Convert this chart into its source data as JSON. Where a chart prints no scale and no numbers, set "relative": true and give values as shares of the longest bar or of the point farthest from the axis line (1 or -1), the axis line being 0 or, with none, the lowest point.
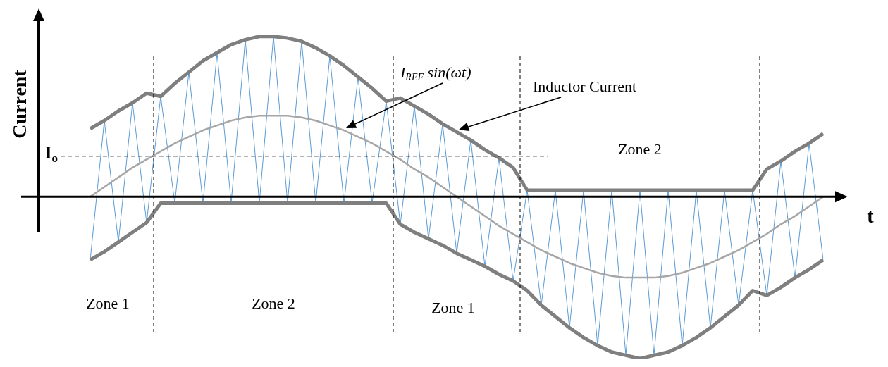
{
  "chart_data": {
    "type": "line",
    "relative": true,
    "ylabel": "Current",
    "xlabel": "t",
    "categories": [
      null,
      null,
      null,
      null,
      null,
      null,
      null,
      null,
      null,
      null,
      null,
      null,
      null,
      null,
      null,
      null,
      null,
      null,
      null,
      null,
      null,
      null,
      null,
      null,
      null,
      null,
      null,
      null,
      null,
      null,
      null,
      null,
      null,
      null,
      null,
      null,
      null,
      null,
      null,
      null,
      null,
      null,
      null,
      null,
      null,
      null,
      null,
      null,
      null,
      null,
      null,
      null,
      null
    ],
    "series": [
      {
        "color": "#5b9bd5",
        "values": [
          -0.39,
          0.47,
          -0.28,
          0.58,
          -0.16,
          0.62,
          -0.04,
          0.77,
          -0.04,
          0.89,
          -0.04,
          0.97,
          -0.04,
          0.99,
          -0.04,
          0.96,
          -0.04,
          0.87,
          -0.04,
          0.74,
          -0.04,
          0.59,
          -0.17,
          0.56,
          -0.26,
          0.45,
          -0.35,
          0.35,
          -0.43,
          0.24,
          -0.52,
          0.04,
          -0.67,
          0.04,
          -0.81,
          0.04,
          -0.92,
          0.04,
          -0.98,
          0.04,
          -0.98,
          0.04,
          -0.92,
          0.04,
          -0.81,
          0.04,
          -0.67,
          0.04,
          -0.61,
          0.22,
          -0.5,
          0.33,
          -0.39
        ]
      },
      {
        "color": "#7f7f7f",
        "values": [
          0.42,
          0.47,
          0.53,
          0.58,
          0.64,
          0.62,
          0.7,
          0.77,
          0.84,
          0.89,
          0.94,
          0.97,
          0.99,
          0.99,
          0.98,
          0.96,
          0.92,
          0.87,
          0.81,
          0.74,
          0.67,
          0.59,
          0.61,
          0.56,
          0.51,
          0.45,
          0.4,
          0.35,
          0.29,
          0.24,
          0.18,
          0.04,
          0.04,
          0.04,
          0.04,
          0.04,
          0.04,
          0.04,
          0.04,
          0.04,
          0.04,
          0.04,
          0.04,
          0.04,
          0.04,
          0.04,
          0.04,
          0.04,
          0.17,
          0.22,
          0.28,
          0.33,
          0.39
        ]
      },
      {
        "color": "#7f7f7f",
        "values": [
          -0.39,
          -0.34,
          -0.28,
          -0.22,
          -0.16,
          -0.04,
          -0.04,
          -0.04,
          -0.04,
          -0.04,
          -0.04,
          -0.04,
          -0.04,
          -0.04,
          -0.04,
          -0.04,
          -0.04,
          -0.04,
          -0.04,
          -0.04,
          -0.04,
          -0.04,
          -0.17,
          -0.22,
          -0.26,
          -0.3,
          -0.35,
          -0.39,
          -0.43,
          -0.48,
          -0.52,
          -0.58,
          -0.67,
          -0.74,
          -0.81,
          -0.87,
          -0.92,
          -0.96,
          -0.98,
          -1,
          -0.98,
          -0.96,
          -0.92,
          -0.87,
          -0.81,
          -0.74,
          -0.67,
          -0.58,
          -0.61,
          -0.56,
          -0.5,
          -0.45,
          -0.39
        ]
      },
      {
        "color": "#a6a6a6",
        "values": [
          0,
          0.06,
          0.12,
          0.18,
          0.23,
          0.28,
          0.33,
          0.37,
          0.41,
          0.44,
          0.47,
          0.49,
          0.5,
          0.5,
          0.5,
          0.49,
          0.47,
          0.44,
          0.41,
          0.37,
          0.33,
          0.28,
          0.23,
          0.17,
          0.12,
          0.06,
          0,
          -0.06,
          -0.12,
          -0.18,
          -0.23,
          -0.28,
          -0.33,
          -0.37,
          -0.41,
          -0.44,
          -0.47,
          -0.49,
          -0.5,
          -0.5,
          -0.5,
          -0.49,
          -0.47,
          -0.44,
          -0.41,
          -0.37,
          -0.33,
          -0.28,
          -0.23,
          -0.17,
          -0.12,
          -0.06,
          0
        ]
      }
    ],
    "ref_lines": [
      {
        "axis": "y",
        "value": 0.25,
        "label": "I$_{o}$",
        "color": "#000000",
        "line_style": "dashed"
      }
    ],
    "annotations": [
      "I$_{REF}$ sin(ωt)",
      "Inductor Current",
      "Zone 1",
      "Zone 2",
      "Zone 1",
      "Zone 2"
    ]
  }
}
